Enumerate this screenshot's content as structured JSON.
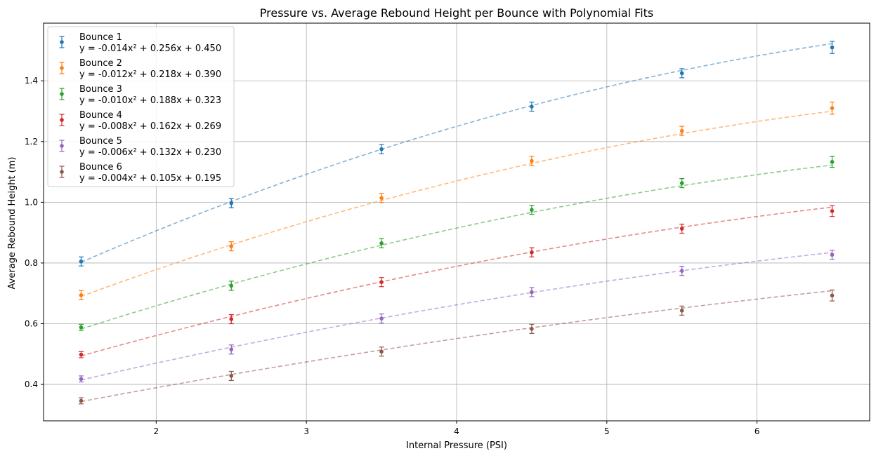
{
  "chart_data": {
    "type": "scatter",
    "title": "Pressure vs. Average Rebound Height per Bounce with Polynomial Fits",
    "xlabel": "Internal Pressure (PSI)",
    "ylabel": "Average Rebound Height (m)",
    "xlim": [
      1.25,
      6.75
    ],
    "ylim": [
      0.28,
      1.59
    ],
    "xticks": [
      2,
      3,
      4,
      5,
      6
    ],
    "yticks": [
      0.4,
      0.6,
      0.8,
      1.0,
      1.2,
      1.4
    ],
    "ytick_labels": [
      "0.4",
      "0.6",
      "0.8",
      "1.0",
      "1.2",
      "1.4"
    ],
    "grid": true,
    "legend_position": "top-left",
    "x": [
      1.5,
      2.5,
      3.5,
      4.5,
      5.5,
      6.5
    ],
    "series": [
      {
        "name": "Bounce 1",
        "fit_label": "y = -0.014x² + 0.256x + 0.450",
        "color": "#1f77b4",
        "fit": [
          -0.014,
          0.256,
          0.45
        ],
        "values": [
          0.805,
          0.997,
          1.175,
          1.315,
          1.425,
          1.51
        ],
        "errors": [
          0.015,
          0.015,
          0.015,
          0.015,
          0.015,
          0.02
        ]
      },
      {
        "name": "Bounce 2",
        "fit_label": "y = -0.012x² + 0.218x + 0.390",
        "color": "#ff7f0e",
        "fit": [
          -0.012,
          0.218,
          0.39
        ],
        "values": [
          0.694,
          0.855,
          1.014,
          1.136,
          1.235,
          1.31
        ],
        "errors": [
          0.015,
          0.015,
          0.015,
          0.015,
          0.015,
          0.02
        ]
      },
      {
        "name": "Bounce 3",
        "fit_label": "y = -0.010x² + 0.188x + 0.323",
        "color": "#2ca02c",
        "fit": [
          -0.01,
          0.188,
          0.323
        ],
        "values": [
          0.588,
          0.725,
          0.865,
          0.975,
          1.063,
          1.133
        ],
        "errors": [
          0.01,
          0.015,
          0.015,
          0.015,
          0.015,
          0.018
        ]
      },
      {
        "name": "Bounce 4",
        "fit_label": "y = -0.008x² + 0.162x + 0.269",
        "color": "#d62728",
        "fit": [
          -0.008,
          0.162,
          0.269
        ],
        "values": [
          0.498,
          0.615,
          0.737,
          0.835,
          0.913,
          0.971
        ],
        "errors": [
          0.01,
          0.015,
          0.015,
          0.015,
          0.015,
          0.018
        ]
      },
      {
        "name": "Bounce 5",
        "fit_label": "y = -0.006x² + 0.132x + 0.230",
        "color": "#9467bd",
        "fit": [
          -0.006,
          0.132,
          0.23
        ],
        "values": [
          0.418,
          0.515,
          0.617,
          0.704,
          0.774,
          0.827
        ],
        "errors": [
          0.01,
          0.015,
          0.015,
          0.015,
          0.015,
          0.015
        ]
      },
      {
        "name": "Bounce 6",
        "fit_label": "y = -0.004x² + 0.105x + 0.195",
        "color": "#8c564b",
        "fit": [
          -0.004,
          0.105,
          0.195
        ],
        "values": [
          0.346,
          0.428,
          0.508,
          0.583,
          0.643,
          0.693
        ],
        "errors": [
          0.01,
          0.015,
          0.015,
          0.015,
          0.015,
          0.018
        ]
      }
    ]
  }
}
